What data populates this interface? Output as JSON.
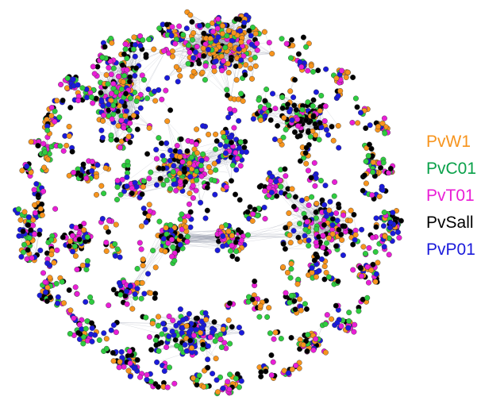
{
  "legend": {
    "items": [
      {
        "label": "PvW1",
        "color": "#F7941D"
      },
      {
        "label": "PvC01",
        "color": "#0AA14A"
      },
      {
        "label": "PvT01",
        "color": "#E91ED6"
      },
      {
        "label": "PvSall",
        "color": "#000000"
      },
      {
        "label": "PvP01",
        "color": "#1A1ADB"
      }
    ]
  },
  "network": {
    "node_palette": [
      "#F7941D",
      "#2ECC40",
      "#E91ED6",
      "#000000",
      "#1A1ADB"
    ],
    "edge_color": "#9aa0b0"
  }
}
